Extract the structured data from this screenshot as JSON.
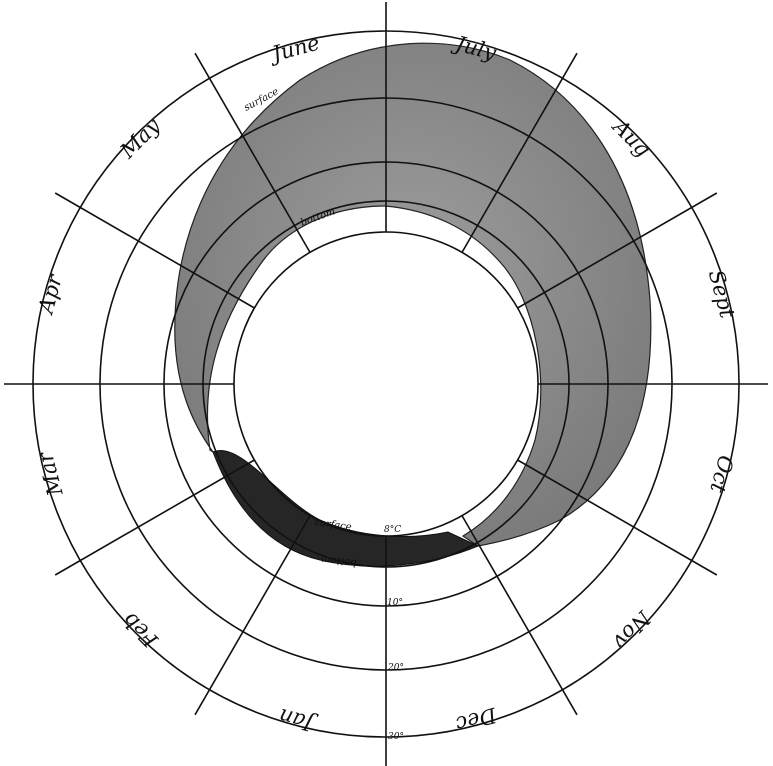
{
  "months": [
    "Jan",
    "Feb",
    "Mar",
    "Apr",
    "May",
    "June",
    "July",
    "Aug",
    "Sept",
    "Oct",
    "Nov",
    "Dec"
  ],
  "labels": {
    "surface_top": "surface",
    "bottom_top": "bottom",
    "surface_bottom": "surface",
    "bottom_bottom": "bottom"
  },
  "scale": {
    "zero": "8°C",
    "ten": "10°",
    "twenty": "20°",
    "thirty": "30°"
  },
  "colors": {
    "line": "#111111",
    "surface_band": "#8a8a8a",
    "bottom_band": "#2a2a2a"
  }
}
